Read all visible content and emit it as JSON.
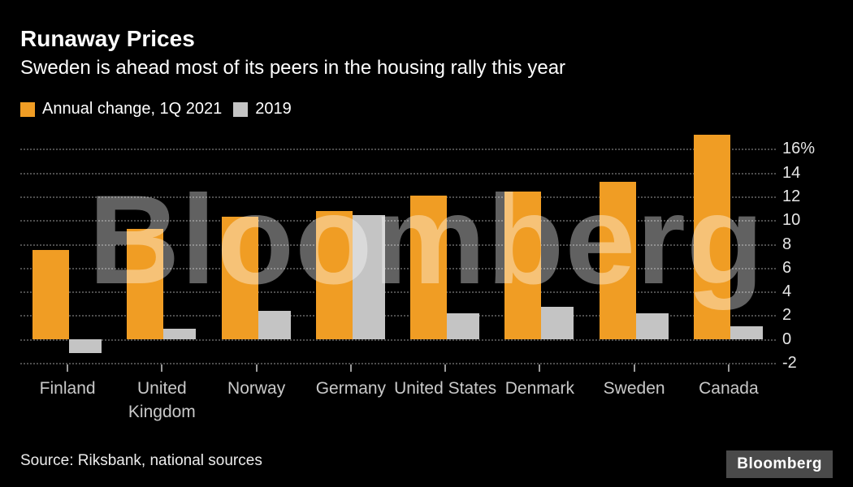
{
  "title": "Runaway Prices",
  "subtitle": "Sweden is ahead most of its peers in the housing rally this year",
  "legend": [
    {
      "label": "Annual change, 1Q 2021",
      "color": "#F09D24"
    },
    {
      "label": "2019",
      "color": "#C4C4C4"
    }
  ],
  "watermark": "Bloomberg",
  "source": "Source: Riksbank, national sources",
  "logo": "Bloomberg",
  "chart_data": {
    "type": "bar",
    "title": "Runaway Prices",
    "subtitle": "Sweden is ahead most of its peers in the housing rally this year",
    "categories": [
      "Finland",
      "United Kingdom",
      "Norway",
      "Germany",
      "United States",
      "Denmark",
      "Sweden",
      "Canada"
    ],
    "series": [
      {
        "name": "Annual change, 1Q 2021",
        "color": "#F09D24",
        "values": [
          7.5,
          9.3,
          10.3,
          10.8,
          12.1,
          12.4,
          13.2,
          17.2
        ]
      },
      {
        "name": "2019",
        "color": "#C4C4C4",
        "values": [
          -1.2,
          0.9,
          2.4,
          10.4,
          2.2,
          2.7,
          2.2,
          1.1
        ]
      }
    ],
    "ylim": [
      -2,
      17.6
    ],
    "yticks": [
      -2,
      0,
      2,
      4,
      6,
      8,
      10,
      12,
      14,
      16
    ],
    "ytick_labels": [
      "-2",
      "0",
      "2",
      "4",
      "6",
      "8",
      "10",
      "12",
      "14",
      "16%"
    ],
    "ylabel": "",
    "xlabel": "",
    "grid": "dotted-horizontal",
    "legend_position": "top-left",
    "axis_side": "right"
  }
}
